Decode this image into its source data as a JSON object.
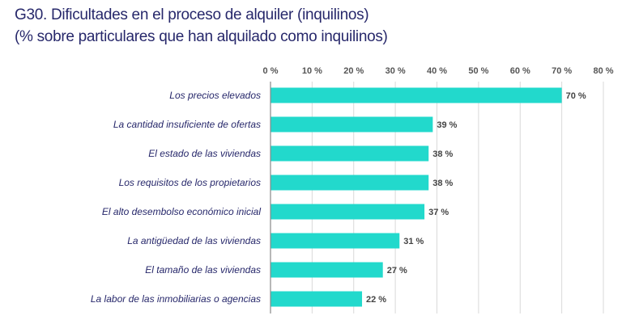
{
  "chart_data": {
    "type": "bar",
    "orientation": "horizontal",
    "title": "G30. Dificultades en el proceso de alquiler (inquilinos)",
    "subtitle": "(% sobre particulares que han alquilado como inquilinos)",
    "categories": [
      "Los precios elevados",
      "La cantidad insuficiente de ofertas",
      "El estado de las viviendas",
      "Los requisitos de los propietarios",
      "El alto desembolso económico inicial",
      "La antigüedad de las viviendas",
      "El tamaño de las viviendas",
      "La labor de las inmobiliarias o agencias"
    ],
    "values": [
      70,
      39,
      38,
      38,
      37,
      31,
      27,
      22
    ],
    "value_labels": [
      "70 %",
      "39 %",
      "38 %",
      "38 %",
      "37 %",
      "31 %",
      "27 %",
      "22 %"
    ],
    "xlim": [
      0,
      80
    ],
    "xticks": [
      "0 %",
      "10 %",
      "20 %",
      "30 %",
      "40 %",
      "50 %",
      "60 %",
      "70 %",
      "80 %"
    ],
    "axis_position": "top",
    "grid": true,
    "colors": {
      "bar": "#22d9cc",
      "title": "#27286b",
      "grid": "#d9d9d9"
    }
  }
}
